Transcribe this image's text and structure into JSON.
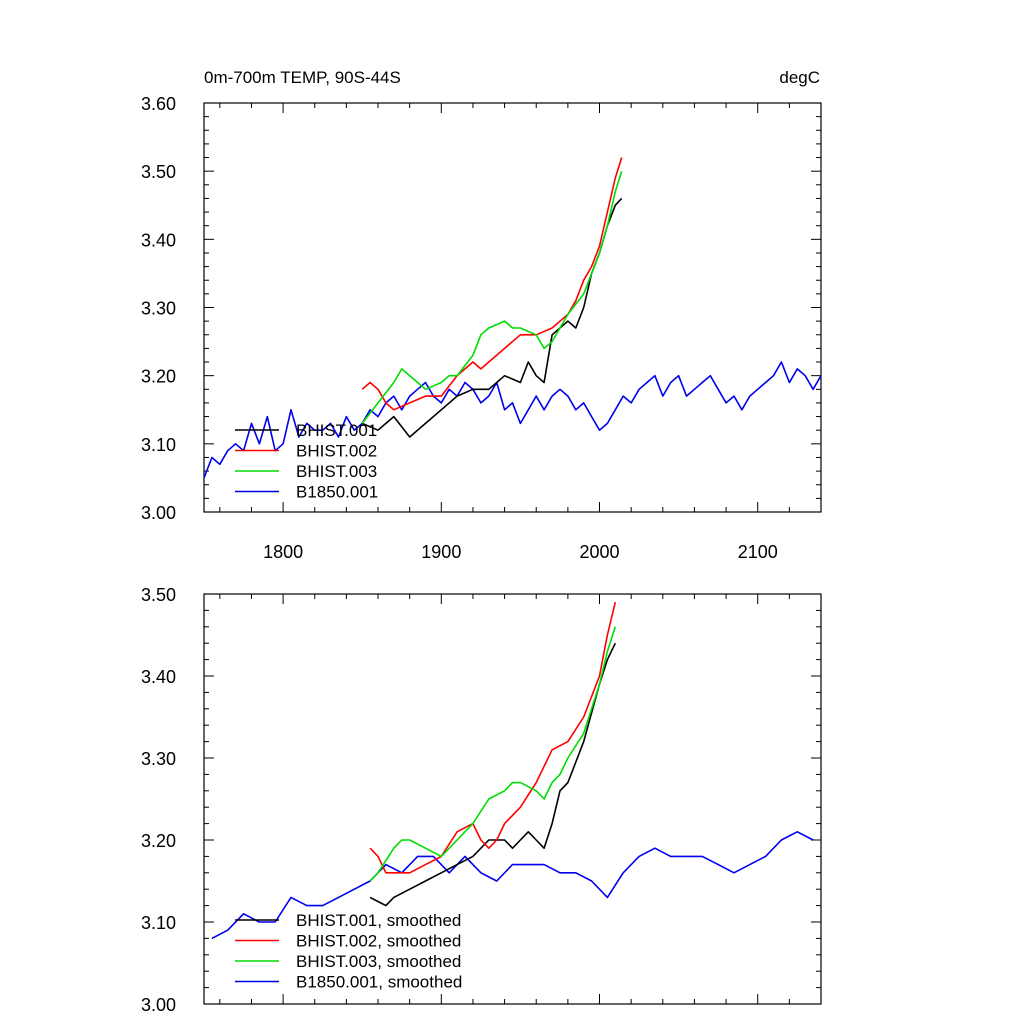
{
  "header": {
    "title": "0m-700m TEMP, 90S-44S",
    "units": "degC"
  },
  "colors": {
    "BHIST.001": "#000000",
    "BHIST.002": "#ff0000",
    "BHIST.003": "#00dd00",
    "B1850.001": "#0000ee"
  },
  "chart_data": [
    {
      "type": "line",
      "title": "0m-700m TEMP, 90S-44S",
      "units_label": "degC",
      "xlim": [
        1750,
        2140
      ],
      "ylim": [
        3.0,
        3.6
      ],
      "xticks": [
        1800,
        1900,
        2000,
        2100
      ],
      "xtick_labels": [
        "1800",
        "1900",
        "2000",
        "2100"
      ],
      "yticks": [
        3.0,
        3.1,
        3.2,
        3.3,
        3.4,
        3.5,
        3.6
      ],
      "ytick_labels": [
        "3.00",
        "3.10",
        "3.20",
        "3.30",
        "3.40",
        "3.50",
        "3.60"
      ],
      "legend_placement": "bottom-left",
      "series": [
        {
          "name": "BHIST.001",
          "color": "#000000",
          "x": [
            1850,
            1860,
            1870,
            1880,
            1890,
            1900,
            1910,
            1920,
            1930,
            1940,
            1950,
            1955,
            1960,
            1965,
            1970,
            1975,
            1980,
            1985,
            1990,
            1995,
            2000,
            2005,
            2010,
            2014
          ],
          "y": [
            3.13,
            3.12,
            3.14,
            3.11,
            3.13,
            3.15,
            3.17,
            3.18,
            3.18,
            3.2,
            3.19,
            3.22,
            3.2,
            3.19,
            3.26,
            3.27,
            3.28,
            3.27,
            3.3,
            3.35,
            3.38,
            3.42,
            3.45,
            3.46
          ]
        },
        {
          "name": "BHIST.002",
          "color": "#ff0000",
          "x": [
            1850,
            1855,
            1860,
            1865,
            1870,
            1880,
            1890,
            1900,
            1910,
            1920,
            1925,
            1930,
            1940,
            1950,
            1960,
            1970,
            1980,
            1985,
            1990,
            1995,
            2000,
            2005,
            2010,
            2014
          ],
          "y": [
            3.18,
            3.19,
            3.18,
            3.16,
            3.15,
            3.16,
            3.17,
            3.17,
            3.2,
            3.22,
            3.21,
            3.22,
            3.24,
            3.26,
            3.26,
            3.27,
            3.29,
            3.31,
            3.34,
            3.36,
            3.39,
            3.44,
            3.49,
            3.52
          ]
        },
        {
          "name": "BHIST.003",
          "color": "#00dd00",
          "x": [
            1850,
            1860,
            1870,
            1875,
            1880,
            1890,
            1900,
            1905,
            1910,
            1920,
            1925,
            1930,
            1940,
            1945,
            1950,
            1960,
            1965,
            1970,
            1975,
            1980,
            1990,
            2000,
            2005,
            2010,
            2014
          ],
          "y": [
            3.13,
            3.16,
            3.19,
            3.21,
            3.2,
            3.18,
            3.19,
            3.2,
            3.2,
            3.23,
            3.26,
            3.27,
            3.28,
            3.27,
            3.27,
            3.26,
            3.24,
            3.25,
            3.27,
            3.29,
            3.32,
            3.38,
            3.42,
            3.47,
            3.5
          ]
        },
        {
          "name": "B1850.001",
          "color": "#0000ee",
          "x": [
            1750,
            1755,
            1760,
            1765,
            1770,
            1775,
            1780,
            1785,
            1790,
            1795,
            1800,
            1805,
            1810,
            1815,
            1820,
            1825,
            1830,
            1835,
            1840,
            1845,
            1850,
            1855,
            1860,
            1865,
            1870,
            1875,
            1880,
            1885,
            1890,
            1895,
            1900,
            1905,
            1910,
            1915,
            1920,
            1925,
            1930,
            1935,
            1940,
            1945,
            1950,
            1955,
            1960,
            1965,
            1970,
            1975,
            1980,
            1985,
            1990,
            1995,
            2000,
            2005,
            2010,
            2015,
            2020,
            2025,
            2030,
            2035,
            2040,
            2045,
            2050,
            2055,
            2060,
            2065,
            2070,
            2075,
            2080,
            2085,
            2090,
            2095,
            2100,
            2105,
            2110,
            2115,
            2120,
            2125,
            2130,
            2135,
            2140
          ],
          "y": [
            3.05,
            3.08,
            3.07,
            3.09,
            3.1,
            3.09,
            3.13,
            3.1,
            3.14,
            3.09,
            3.1,
            3.15,
            3.11,
            3.13,
            3.12,
            3.12,
            3.13,
            3.11,
            3.14,
            3.12,
            3.13,
            3.15,
            3.14,
            3.16,
            3.17,
            3.15,
            3.17,
            3.18,
            3.19,
            3.17,
            3.16,
            3.18,
            3.17,
            3.19,
            3.18,
            3.16,
            3.17,
            3.19,
            3.15,
            3.16,
            3.13,
            3.15,
            3.17,
            3.15,
            3.17,
            3.18,
            3.17,
            3.15,
            3.16,
            3.14,
            3.12,
            3.13,
            3.15,
            3.17,
            3.16,
            3.18,
            3.19,
            3.2,
            3.17,
            3.19,
            3.2,
            3.17,
            3.18,
            3.19,
            3.2,
            3.18,
            3.16,
            3.17,
            3.15,
            3.17,
            3.18,
            3.19,
            3.2,
            3.22,
            3.19,
            3.21,
            3.2,
            3.18,
            3.2
          ]
        }
      ]
    },
    {
      "type": "line",
      "xlim": [
        1750,
        2140
      ],
      "ylim": [
        3.0,
        3.5
      ],
      "xticks": [
        1800,
        1900,
        2000,
        2100
      ],
      "yticks": [
        3.0,
        3.1,
        3.2,
        3.3,
        3.4,
        3.5
      ],
      "ytick_labels": [
        "3.00",
        "3.10",
        "3.20",
        "3.30",
        "3.40",
        "3.50"
      ],
      "legend_placement": "bottom-left",
      "series": [
        {
          "name": "BHIST.001, smoothed",
          "color": "#000000",
          "x": [
            1855,
            1865,
            1870,
            1880,
            1890,
            1900,
            1910,
            1920,
            1930,
            1940,
            1945,
            1950,
            1955,
            1960,
            1965,
            1970,
            1975,
            1980,
            1990,
            2000,
            2005,
            2010
          ],
          "y": [
            3.13,
            3.12,
            3.13,
            3.14,
            3.15,
            3.16,
            3.17,
            3.18,
            3.2,
            3.2,
            3.19,
            3.2,
            3.21,
            3.2,
            3.19,
            3.22,
            3.26,
            3.27,
            3.32,
            3.39,
            3.42,
            3.44
          ]
        },
        {
          "name": "BHIST.002, smoothed",
          "color": "#ff0000",
          "x": [
            1855,
            1860,
            1865,
            1870,
            1880,
            1890,
            1900,
            1910,
            1920,
            1925,
            1930,
            1935,
            1940,
            1950,
            1960,
            1970,
            1980,
            1990,
            2000,
            2005,
            2010
          ],
          "y": [
            3.19,
            3.18,
            3.16,
            3.16,
            3.16,
            3.17,
            3.18,
            3.21,
            3.22,
            3.2,
            3.19,
            3.2,
            3.22,
            3.24,
            3.27,
            3.31,
            3.32,
            3.35,
            3.4,
            3.45,
            3.49
          ]
        },
        {
          "name": "BHIST.003, smoothed",
          "color": "#00dd00",
          "x": [
            1855,
            1860,
            1870,
            1875,
            1880,
            1890,
            1900,
            1910,
            1920,
            1930,
            1940,
            1945,
            1950,
            1960,
            1965,
            1970,
            1975,
            1980,
            1990,
            2000,
            2005,
            2010
          ],
          "y": [
            3.15,
            3.16,
            3.19,
            3.2,
            3.2,
            3.19,
            3.18,
            3.2,
            3.22,
            3.25,
            3.26,
            3.27,
            3.27,
            3.26,
            3.25,
            3.27,
            3.28,
            3.3,
            3.33,
            3.39,
            3.43,
            3.46
          ]
        },
        {
          "name": "B1850.001, smoothed",
          "color": "#0000ee",
          "x": [
            1755,
            1765,
            1775,
            1785,
            1795,
            1805,
            1815,
            1825,
            1835,
            1845,
            1855,
            1865,
            1875,
            1885,
            1895,
            1905,
            1915,
            1925,
            1935,
            1945,
            1955,
            1965,
            1975,
            1985,
            1995,
            2005,
            2015,
            2025,
            2035,
            2045,
            2055,
            2065,
            2075,
            2085,
            2095,
            2105,
            2115,
            2125,
            2135
          ],
          "y": [
            3.08,
            3.09,
            3.11,
            3.1,
            3.1,
            3.13,
            3.12,
            3.12,
            3.13,
            3.14,
            3.15,
            3.17,
            3.16,
            3.18,
            3.18,
            3.16,
            3.18,
            3.16,
            3.15,
            3.17,
            3.17,
            3.17,
            3.16,
            3.16,
            3.15,
            3.13,
            3.16,
            3.18,
            3.19,
            3.18,
            3.18,
            3.18,
            3.17,
            3.16,
            3.17,
            3.18,
            3.2,
            3.21,
            3.2
          ]
        }
      ]
    }
  ]
}
